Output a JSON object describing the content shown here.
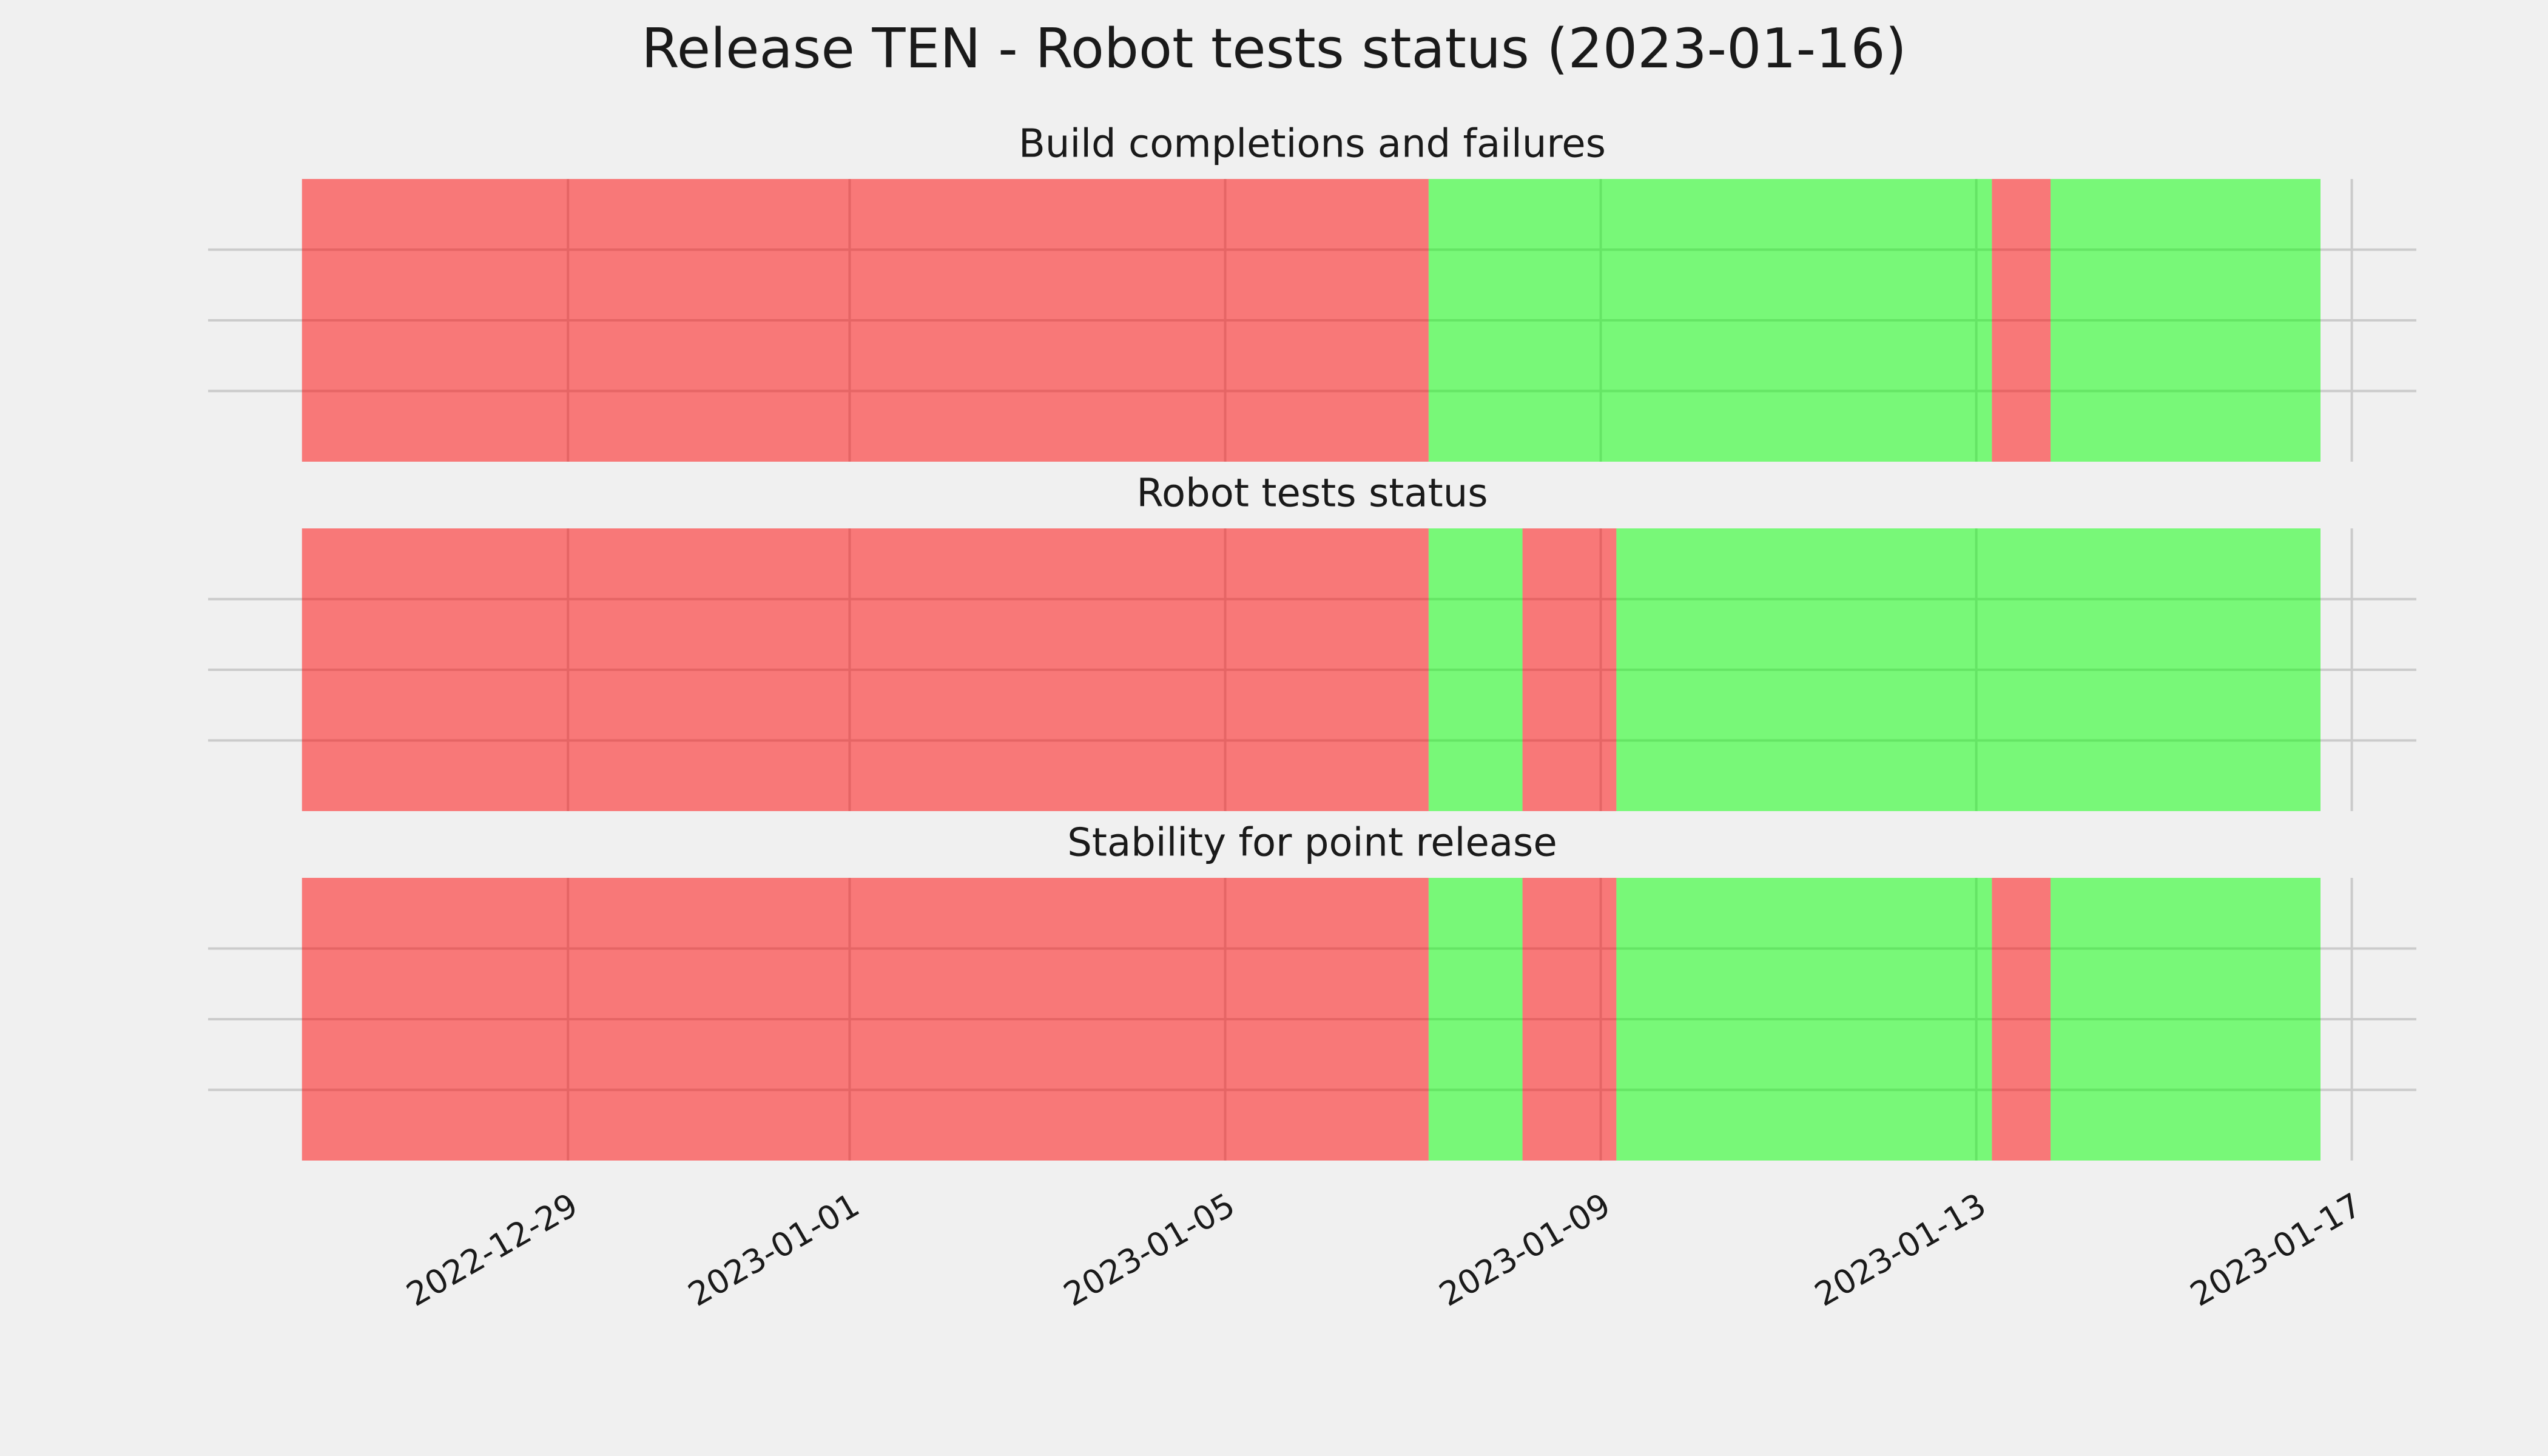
{
  "title": "Release TEN - Robot tests status (2023-01-16)",
  "chart_data": [
    {
      "type": "timeline",
      "title": "Build completions and failures",
      "x": [
        "2022-12-26T04:00",
        "2023-01-07T04:00",
        "2023-01-13T04:00",
        "2023-01-13T19:00",
        "2023-01-16T16:00"
      ],
      "colors": [
        "#ff0000",
        "#00ff00",
        "#ff0000",
        "#00ff00"
      ],
      "alpha": 0.5,
      "xlim": [
        "2022-12-25T04:00",
        "2023-01-17T16:30"
      ],
      "xticks": [
        "2022-12-29",
        "2023-01-01",
        "2023-01-05",
        "2023-01-09",
        "2023-01-13",
        "2023-01-17"
      ],
      "ylim": [
        0,
        1
      ],
      "yticks": [
        0.25,
        0.5,
        0.75
      ],
      "grid": true
    },
    {
      "type": "timeline",
      "title": "Robot tests status",
      "x": [
        "2022-12-26T04:00",
        "2023-01-07T04:00",
        "2023-01-08T04:00",
        "2023-01-09T04:00",
        "2023-01-16T16:00"
      ],
      "colors": [
        "#ff0000",
        "#00ff00",
        "#ff0000",
        "#00ff00"
      ],
      "alpha": 0.5,
      "xlim": [
        "2022-12-25T04:00",
        "2023-01-17T16:30"
      ],
      "xticks": [
        "2022-12-29",
        "2023-01-01",
        "2023-01-05",
        "2023-01-09",
        "2023-01-13",
        "2023-01-17"
      ],
      "ylim": [
        0,
        1
      ],
      "yticks": [
        0.25,
        0.5,
        0.75
      ],
      "grid": true
    },
    {
      "type": "timeline",
      "title": "Stability for point release",
      "x": [
        "2022-12-26T04:00",
        "2023-01-07T04:00",
        "2023-01-08T04:00",
        "2023-01-09T04:00",
        "2023-01-13T04:00",
        "2023-01-13T19:00",
        "2023-01-16T16:00"
      ],
      "colors": [
        "#ff0000",
        "#00ff00",
        "#ff0000",
        "#00ff00",
        "#ff0000",
        "#00ff00"
      ],
      "alpha": 0.5,
      "xlim": [
        "2022-12-25T04:00",
        "2023-01-17T16:30"
      ],
      "xticks": [
        "2022-12-29",
        "2023-01-01",
        "2023-01-05",
        "2023-01-09",
        "2023-01-13",
        "2023-01-17"
      ],
      "ylim": [
        0,
        1
      ],
      "yticks": [
        0.25,
        0.5,
        0.75
      ],
      "grid": true
    }
  ]
}
